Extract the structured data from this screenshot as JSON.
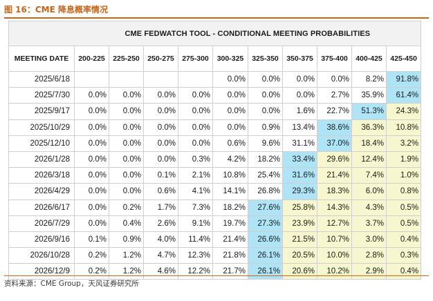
{
  "figure": {
    "title": "图 16：CME 降息概率情况",
    "source": "资料来源：CME Group，天风证券研究所"
  },
  "table": {
    "banner_title": "CME FEDWATCH TOOL - CONDITIONAL MEETING PROBABILITIES",
    "date_header": "MEETING DATE",
    "columns": [
      "200-225",
      "225-250",
      "250-275",
      "275-300",
      "300-325",
      "325-350",
      "350-375",
      "375-400",
      "400-425",
      "425-450"
    ],
    "rows": [
      {
        "date": "2025/6/18",
        "values": [
          "",
          "",
          "",
          "",
          "0.0%",
          "0.0%",
          "0.0%",
          "0.0%",
          "8.2%",
          "91.8%"
        ],
        "max_col": 9,
        "highlight_cols": []
      },
      {
        "date": "2025/7/30",
        "values": [
          "0.0%",
          "0.0%",
          "0.0%",
          "0.0%",
          "0.0%",
          "0.0%",
          "0.0%",
          "2.7%",
          "35.9%",
          "61.4%"
        ],
        "max_col": 9,
        "highlight_cols": []
      },
      {
        "date": "2025/9/17",
        "values": [
          "0.0%",
          "0.0%",
          "0.0%",
          "0.0%",
          "0.0%",
          "0.0%",
          "1.6%",
          "22.7%",
          "51.3%",
          "24.3%"
        ],
        "max_col": 8,
        "highlight_cols": [
          9
        ]
      },
      {
        "date": "2025/10/29",
        "values": [
          "0.0%",
          "0.0%",
          "0.0%",
          "0.0%",
          "0.0%",
          "0.9%",
          "13.4%",
          "38.6%",
          "36.3%",
          "10.8%"
        ],
        "max_col": 7,
        "highlight_cols": [
          8,
          9
        ]
      },
      {
        "date": "2025/12/10",
        "values": [
          "0.0%",
          "0.0%",
          "0.0%",
          "0.0%",
          "0.6%",
          "9.6%",
          "31.1%",
          "37.0%",
          "18.4%",
          "3.2%"
        ],
        "max_col": 7,
        "highlight_cols": [
          8,
          9
        ]
      },
      {
        "date": "2026/1/28",
        "values": [
          "0.0%",
          "0.0%",
          "0.0%",
          "0.3%",
          "4.2%",
          "18.2%",
          "33.4%",
          "29.6%",
          "12.4%",
          "1.9%"
        ],
        "max_col": 6,
        "highlight_cols": [
          7,
          8,
          9
        ]
      },
      {
        "date": "2026/3/18",
        "values": [
          "0.0%",
          "0.0%",
          "0.1%",
          "2.1%",
          "10.8%",
          "25.4%",
          "31.6%",
          "21.4%",
          "7.4%",
          "1.0%"
        ],
        "max_col": 6,
        "highlight_cols": [
          7,
          8,
          9
        ]
      },
      {
        "date": "2026/4/29",
        "values": [
          "0.0%",
          "0.0%",
          "0.6%",
          "4.1%",
          "14.1%",
          "26.8%",
          "29.3%",
          "18.3%",
          "6.0%",
          "0.8%"
        ],
        "max_col": 6,
        "highlight_cols": [
          7,
          8,
          9
        ]
      },
      {
        "date": "2026/6/17",
        "values": [
          "0.0%",
          "0.2%",
          "1.7%",
          "7.3%",
          "18.2%",
          "27.6%",
          "25.8%",
          "14.3%",
          "4.3%",
          "0.5%"
        ],
        "max_col": 5,
        "highlight_cols": [
          6,
          7,
          8,
          9
        ]
      },
      {
        "date": "2026/7/29",
        "values": [
          "0.0%",
          "0.4%",
          "2.6%",
          "9.1%",
          "19.7%",
          "27.3%",
          "23.9%",
          "12.7%",
          "3.7%",
          "0.5%"
        ],
        "max_col": 5,
        "highlight_cols": [
          6,
          7,
          8,
          9
        ]
      },
      {
        "date": "2026/9/16",
        "values": [
          "0.1%",
          "0.9%",
          "4.0%",
          "11.4%",
          "21.4%",
          "26.6%",
          "21.5%",
          "10.7%",
          "3.0%",
          "0.4%"
        ],
        "max_col": 5,
        "highlight_cols": [
          6,
          7,
          8,
          9
        ]
      },
      {
        "date": "2026/10/28",
        "values": [
          "0.2%",
          "1.2%",
          "4.7%",
          "12.3%",
          "21.8%",
          "26.1%",
          "20.5%",
          "10.0%",
          "2.8%",
          "0.3%"
        ],
        "max_col": 5,
        "highlight_cols": [
          6,
          7,
          8,
          9
        ]
      },
      {
        "date": "2026/12/9",
        "values": [
          "0.2%",
          "1.2%",
          "4.6%",
          "12.2%",
          "21.7%",
          "26.1%",
          "20.6%",
          "10.2%",
          "2.9%",
          "0.4%"
        ],
        "max_col": 5,
        "highlight_cols": [
          6,
          7,
          8,
          9
        ]
      }
    ]
  },
  "colors": {
    "accent": "#c8651b",
    "max_cell": "#aee4f5",
    "highlight_cell": "#f6f6cf",
    "banner_bg": "#f2f2f2"
  }
}
